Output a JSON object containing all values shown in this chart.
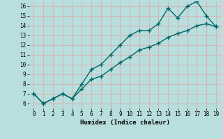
{
  "title": "",
  "xlabel": "Humidex (Indice chaleur)",
  "ylabel": "",
  "bg_color": "#b8dede",
  "grid_color_major": "#d4b8b8",
  "grid_color_minor": "#d4b8b8",
  "line_color": "#006666",
  "line1_x": [
    0,
    1,
    2,
    3,
    4,
    5,
    6,
    7,
    8,
    9,
    10,
    11,
    12,
    13,
    14,
    15,
    16,
    17,
    18,
    19
  ],
  "line1_y": [
    7.0,
    6.0,
    6.5,
    7.0,
    6.5,
    8.0,
    9.5,
    10.0,
    11.0,
    12.0,
    13.0,
    13.5,
    13.5,
    14.2,
    15.8,
    14.8,
    16.0,
    16.5,
    15.0,
    13.9
  ],
  "line2_x": [
    0,
    1,
    2,
    3,
    4,
    5,
    6,
    7,
    8,
    9,
    10,
    11,
    12,
    13,
    14,
    15,
    16,
    17,
    18,
    19
  ],
  "line2_y": [
    7.0,
    6.0,
    6.5,
    7.0,
    6.5,
    7.5,
    8.5,
    8.8,
    9.5,
    10.2,
    10.8,
    11.5,
    11.8,
    12.2,
    12.8,
    13.2,
    13.5,
    14.0,
    14.2,
    13.9
  ],
  "xlim": [
    -0.5,
    19.5
  ],
  "ylim": [
    5.5,
    16.5
  ],
  "yticks": [
    6,
    7,
    8,
    9,
    10,
    11,
    12,
    13,
    14,
    15,
    16
  ],
  "xticks": [
    0,
    1,
    2,
    3,
    4,
    5,
    6,
    7,
    8,
    9,
    10,
    11,
    12,
    13,
    14,
    15,
    16,
    17,
    18,
    19
  ],
  "marker": "+",
  "markersize": 4,
  "linewidth": 1.0
}
